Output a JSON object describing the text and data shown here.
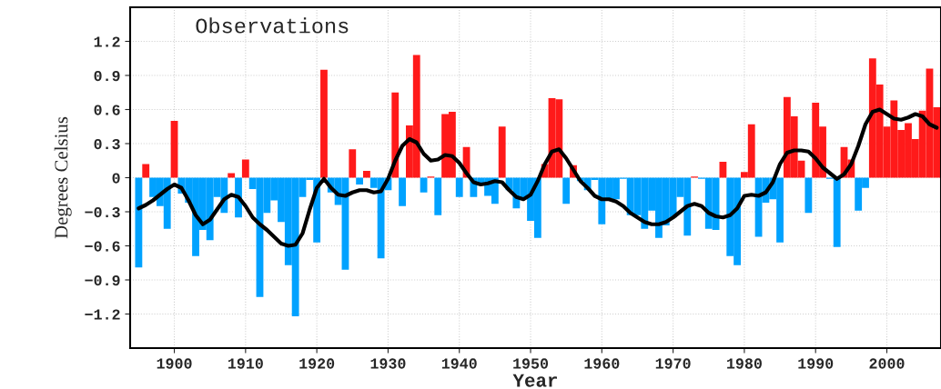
{
  "chart_data": {
    "type": "bar",
    "title": "Observations",
    "xlabel": "Year",
    "ylabel": "Degrees Celsius",
    "xlim": [
      1893.8,
      2007.6
    ],
    "xticks": [
      1900,
      1910,
      1920,
      1930,
      1940,
      1950,
      1960,
      1970,
      1980,
      1990,
      2000
    ],
    "ylim": [
      -1.5,
      1.5
    ],
    "yticks": [
      {
        "value": -1.2,
        "label": "−1.2"
      },
      {
        "value": -0.9,
        "label": "−0.9"
      },
      {
        "value": -0.6,
        "label": "−0.6"
      },
      {
        "value": -0.3,
        "label": "−0.3"
      },
      0,
      0.3,
      0.6,
      0.9,
      1.2
    ],
    "grid": true,
    "series": [
      {
        "x": [
          1895,
          1896,
          1897,
          1898,
          1899,
          1900,
          1901,
          1902,
          1903,
          1904,
          1905,
          1906,
          1907,
          1908,
          1909,
          1910,
          1911,
          1912,
          1913,
          1914,
          1915,
          1916,
          1917,
          1918,
          1919,
          1920,
          1921,
          1922,
          1923,
          1924,
          1925,
          1926,
          1927,
          1928,
          1929,
          1930,
          1931,
          1932,
          1933,
          1934,
          1935,
          1936,
          1937,
          1938,
          1939,
          1940,
          1941,
          1942,
          1943,
          1944,
          1945,
          1946,
          1947,
          1948,
          1949,
          1950,
          1951,
          1952,
          1953,
          1954,
          1955,
          1956,
          1957,
          1958,
          1959,
          1960,
          1961,
          1962,
          1963,
          1964,
          1965,
          1966,
          1967,
          1968,
          1969,
          1970,
          1971,
          1972,
          1973,
          1974,
          1975,
          1976,
          1977,
          1978,
          1979,
          1980,
          1981,
          1982,
          1983,
          1984,
          1985,
          1986,
          1987,
          1988,
          1989,
          1990,
          1991,
          1992,
          1993,
          1994,
          1995,
          1996,
          1997,
          1998,
          1999,
          2000,
          2001,
          2002,
          2003,
          2004,
          2005,
          2006,
          2007
        ],
        "values": [
          -0.79,
          0.12,
          -0.17,
          -0.25,
          -0.45,
          0.5,
          -0.14,
          -0.22,
          -0.69,
          -0.46,
          -0.55,
          -0.17,
          -0.31,
          0.04,
          -0.35,
          0.16,
          -0.1,
          -1.05,
          -0.31,
          -0.2,
          -0.39,
          -0.77,
          -1.22,
          -0.17,
          -0.02,
          -0.57,
          0.95,
          -0.13,
          -0.24,
          -0.81,
          0.25,
          -0.06,
          0.06,
          -0.09,
          -0.71,
          -0.11,
          0.75,
          -0.25,
          0.46,
          1.08,
          -0.13,
          0.01,
          -0.33,
          0.56,
          0.58,
          -0.17,
          0.27,
          -0.17,
          -0.06,
          -0.16,
          -0.23,
          0.45,
          -0.11,
          -0.27,
          -0.18,
          -0.38,
          -0.53,
          0.12,
          0.7,
          0.69,
          -0.23,
          0.11,
          -0.03,
          -0.11,
          -0.02,
          -0.41,
          -0.18,
          -0.19,
          -0.01,
          -0.33,
          -0.33,
          -0.45,
          -0.29,
          -0.53,
          -0.42,
          -0.35,
          -0.17,
          -0.51,
          0.01,
          -0.01,
          -0.45,
          -0.46,
          0.14,
          -0.69,
          -0.77,
          0.05,
          0.47,
          -0.52,
          -0.22,
          -0.19,
          -0.57,
          0.71,
          0.54,
          0.15,
          -0.31,
          0.66,
          0.45,
          -0.01,
          -0.61,
          0.27,
          0.16,
          -0.29,
          -0.09,
          1.05,
          0.82,
          0.45,
          0.68,
          0.42,
          0.48,
          0.34,
          0.59,
          0.96,
          0.62
        ],
        "colors": [
          "#00a2ff",
          "#ff1a1a",
          "#00a2ff",
          "#00a2ff",
          "#00a2ff",
          "#ff1a1a",
          "#00a2ff",
          "#00a2ff",
          "#00a2ff",
          "#00a2ff",
          "#00a2ff",
          "#00a2ff",
          "#00a2ff",
          "#ff1a1a",
          "#00a2ff",
          "#ff1a1a",
          "#00a2ff",
          "#00a2ff",
          "#00a2ff",
          "#00a2ff",
          "#00a2ff",
          "#00a2ff",
          "#00a2ff",
          "#00a2ff",
          "#00a2ff",
          "#00a2ff",
          "#ff1a1a",
          "#00a2ff",
          "#00a2ff",
          "#00a2ff",
          "#ff1a1a",
          "#00a2ff",
          "#ff1a1a",
          "#00a2ff",
          "#00a2ff",
          "#00a2ff",
          "#ff1a1a",
          "#00a2ff",
          "#ff1a1a",
          "#ff1a1a",
          "#00a2ff",
          "#ff1a1a",
          "#00a2ff",
          "#ff1a1a",
          "#ff1a1a",
          "#00a2ff",
          "#ff1a1a",
          "#00a2ff",
          "#00a2ff",
          "#00a2ff",
          "#00a2ff",
          "#ff1a1a",
          "#00a2ff",
          "#00a2ff",
          "#00a2ff",
          "#00a2ff",
          "#00a2ff",
          "#ff1a1a",
          "#ff1a1a",
          "#ff1a1a",
          "#00a2ff",
          "#ff1a1a",
          "#00a2ff",
          "#00a2ff",
          "#00a2ff",
          "#00a2ff",
          "#00a2ff",
          "#00a2ff",
          "#00a2ff",
          "#00a2ff",
          "#00a2ff",
          "#00a2ff",
          "#00a2ff",
          "#00a2ff",
          "#00a2ff",
          "#00a2ff",
          "#00a2ff",
          "#00a2ff",
          "#ff1a1a",
          "#00a2ff",
          "#00a2ff",
          "#00a2ff",
          "#ff1a1a",
          "#00a2ff",
          "#00a2ff",
          "#ff1a1a",
          "#ff1a1a",
          "#00a2ff",
          "#00a2ff",
          "#00a2ff",
          "#00a2ff",
          "#ff1a1a",
          "#ff1a1a",
          "#ff1a1a",
          "#00a2ff",
          "#ff1a1a",
          "#ff1a1a",
          "#00a2ff",
          "#00a2ff",
          "#ff1a1a",
          "#ff1a1a",
          "#00a2ff",
          "#00a2ff",
          "#ff1a1a",
          "#ff1a1a",
          "#ff1a1a",
          "#ff1a1a",
          "#ff1a1a",
          "#ff1a1a",
          "#ff1a1a",
          "#ff1a1a",
          "#ff1a1a",
          "#ff1a1a"
        ]
      },
      {
        "type": "line",
        "color": "#000000",
        "x": [
          1895,
          1896,
          1897,
          1898,
          1899,
          1900,
          1901,
          1902,
          1903,
          1904,
          1905,
          1906,
          1907,
          1908,
          1909,
          1910,
          1911,
          1912,
          1913,
          1914,
          1915,
          1916,
          1917,
          1918,
          1919,
          1920,
          1921,
          1922,
          1923,
          1924,
          1925,
          1926,
          1927,
          1928,
          1929,
          1930,
          1931,
          1932,
          1933,
          1934,
          1935,
          1936,
          1937,
          1938,
          1939,
          1940,
          1941,
          1942,
          1943,
          1944,
          1945,
          1946,
          1947,
          1948,
          1949,
          1950,
          1951,
          1952,
          1953,
          1954,
          1955,
          1956,
          1957,
          1958,
          1959,
          1960,
          1961,
          1962,
          1963,
          1964,
          1965,
          1966,
          1967,
          1968,
          1969,
          1970,
          1971,
          1972,
          1973,
          1974,
          1975,
          1976,
          1977,
          1978,
          1979,
          1980,
          1981,
          1982,
          1983,
          1984,
          1985,
          1986,
          1987,
          1988,
          1989,
          1990,
          1991,
          1992,
          1993,
          1994,
          1995,
          1996,
          1997,
          1998,
          1999,
          2000,
          2001,
          2002,
          2003,
          2004,
          2005,
          2006,
          2007
        ],
        "values": [
          -0.27,
          -0.24,
          -0.2,
          -0.15,
          -0.1,
          -0.06,
          -0.09,
          -0.2,
          -0.33,
          -0.41,
          -0.37,
          -0.28,
          -0.19,
          -0.15,
          -0.17,
          -0.25,
          -0.35,
          -0.41,
          -0.46,
          -0.52,
          -0.58,
          -0.6,
          -0.59,
          -0.49,
          -0.28,
          -0.09,
          -0.01,
          -0.09,
          -0.15,
          -0.16,
          -0.13,
          -0.11,
          -0.11,
          -0.13,
          -0.12,
          -0.01,
          0.15,
          0.28,
          0.34,
          0.31,
          0.21,
          0.15,
          0.16,
          0.2,
          0.19,
          0.13,
          0.04,
          -0.04,
          -0.06,
          -0.05,
          -0.03,
          -0.04,
          -0.11,
          -0.17,
          -0.19,
          -0.15,
          -0.03,
          0.12,
          0.23,
          0.25,
          0.17,
          0.07,
          -0.03,
          -0.09,
          -0.16,
          -0.19,
          -0.19,
          -0.21,
          -0.25,
          -0.31,
          -0.35,
          -0.39,
          -0.41,
          -0.41,
          -0.39,
          -0.35,
          -0.3,
          -0.25,
          -0.23,
          -0.25,
          -0.31,
          -0.34,
          -0.35,
          -0.33,
          -0.27,
          -0.16,
          -0.15,
          -0.16,
          -0.13,
          -0.04,
          0.12,
          0.22,
          0.24,
          0.24,
          0.23,
          0.17,
          0.09,
          0.04,
          -0.01,
          0.03,
          0.12,
          0.28,
          0.47,
          0.58,
          0.6,
          0.56,
          0.52,
          0.51,
          0.53,
          0.56,
          0.54,
          0.47,
          0.44
        ]
      }
    ]
  }
}
